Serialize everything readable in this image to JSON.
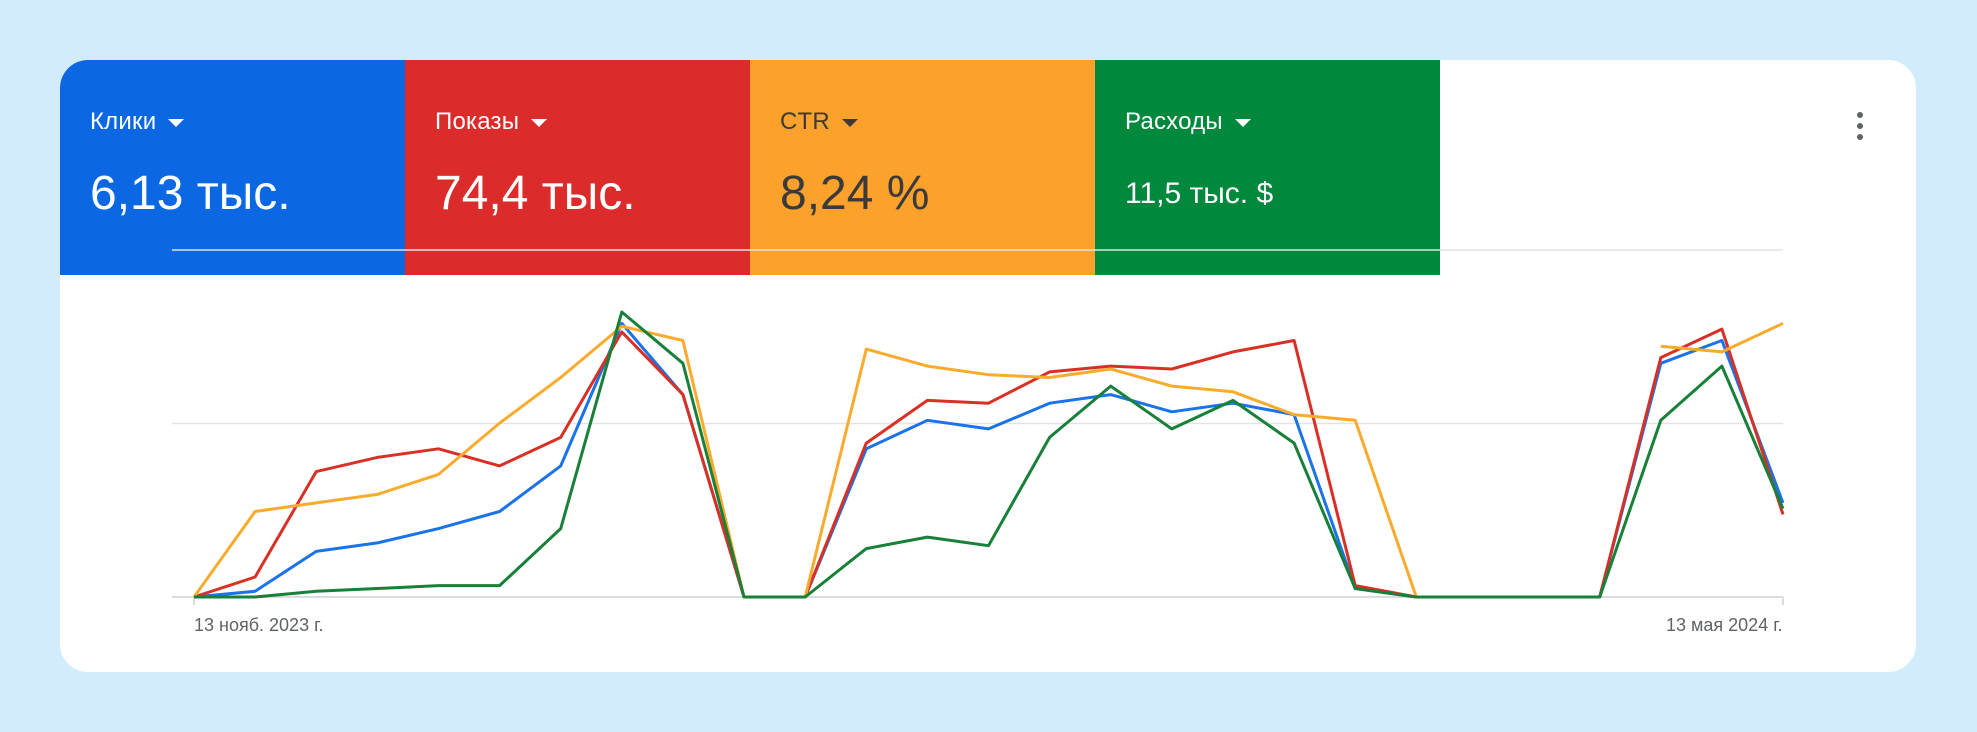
{
  "metrics": [
    {
      "label": "Клики",
      "value": "6,13 тыс.",
      "color": "#0b68e2"
    },
    {
      "label": "Показы",
      "value": "74,4 тыс.",
      "color": "#dc2b2b"
    },
    {
      "label": "CTR",
      "value": "8,24 %",
      "color": "#fba12c"
    },
    {
      "label": "Расходы",
      "value": "11,5 тыс. $",
      "color": "#00883c"
    }
  ],
  "more_menu_icon": "more-vert-icon",
  "chart_data": {
    "type": "line",
    "x_tick_labels": [
      "13 нояб. 2023 г.",
      "13 мая 2024 г."
    ],
    "y_scale": "normalized 0-1 per series, no y tick labels shown",
    "ylim": [
      0,
      1
    ],
    "grid": true,
    "series": [
      {
        "name": "Клики",
        "color": "#1a73e8",
        "values": [
          0,
          0.02,
          0.16,
          0.19,
          0.24,
          0.3,
          0.46,
          0.96,
          0.71,
          0,
          0,
          0.52,
          0.62,
          0.59,
          0.68,
          0.71,
          0.65,
          0.68,
          0.64,
          0.03,
          0,
          0,
          0,
          0,
          0.82,
          0.9,
          0.33
        ]
      },
      {
        "name": "Показы",
        "color": "#d93025",
        "values": [
          0,
          0.07,
          0.44,
          0.49,
          0.52,
          0.46,
          0.56,
          0.93,
          0.71,
          0,
          0,
          0.54,
          0.69,
          0.68,
          0.79,
          0.81,
          0.8,
          0.86,
          0.9,
          0.04,
          0,
          0,
          0,
          0,
          0.84,
          0.94,
          0.29
        ]
      },
      {
        "name": "CTR",
        "color": "#f9ab2e",
        "values": [
          0,
          0.3,
          0.33,
          0.36,
          0.43,
          0.61,
          0.77,
          0.95,
          0.9,
          0,
          0,
          0.87,
          0.81,
          0.78,
          0.77,
          0.8,
          0.74,
          0.72,
          0.64,
          0.62,
          0,
          null,
          null,
          null,
          0.88,
          0.86,
          0.96
        ]
      },
      {
        "name": "Расходы",
        "color": "#188038",
        "values": [
          0,
          0,
          0.02,
          0.03,
          0.04,
          0.04,
          0.24,
          1.0,
          0.82,
          0,
          0,
          0.17,
          0.21,
          0.18,
          0.56,
          0.74,
          0.59,
          0.69,
          0.54,
          0.03,
          0,
          0,
          0,
          0,
          0.62,
          0.81,
          0.31
        ]
      }
    ]
  }
}
